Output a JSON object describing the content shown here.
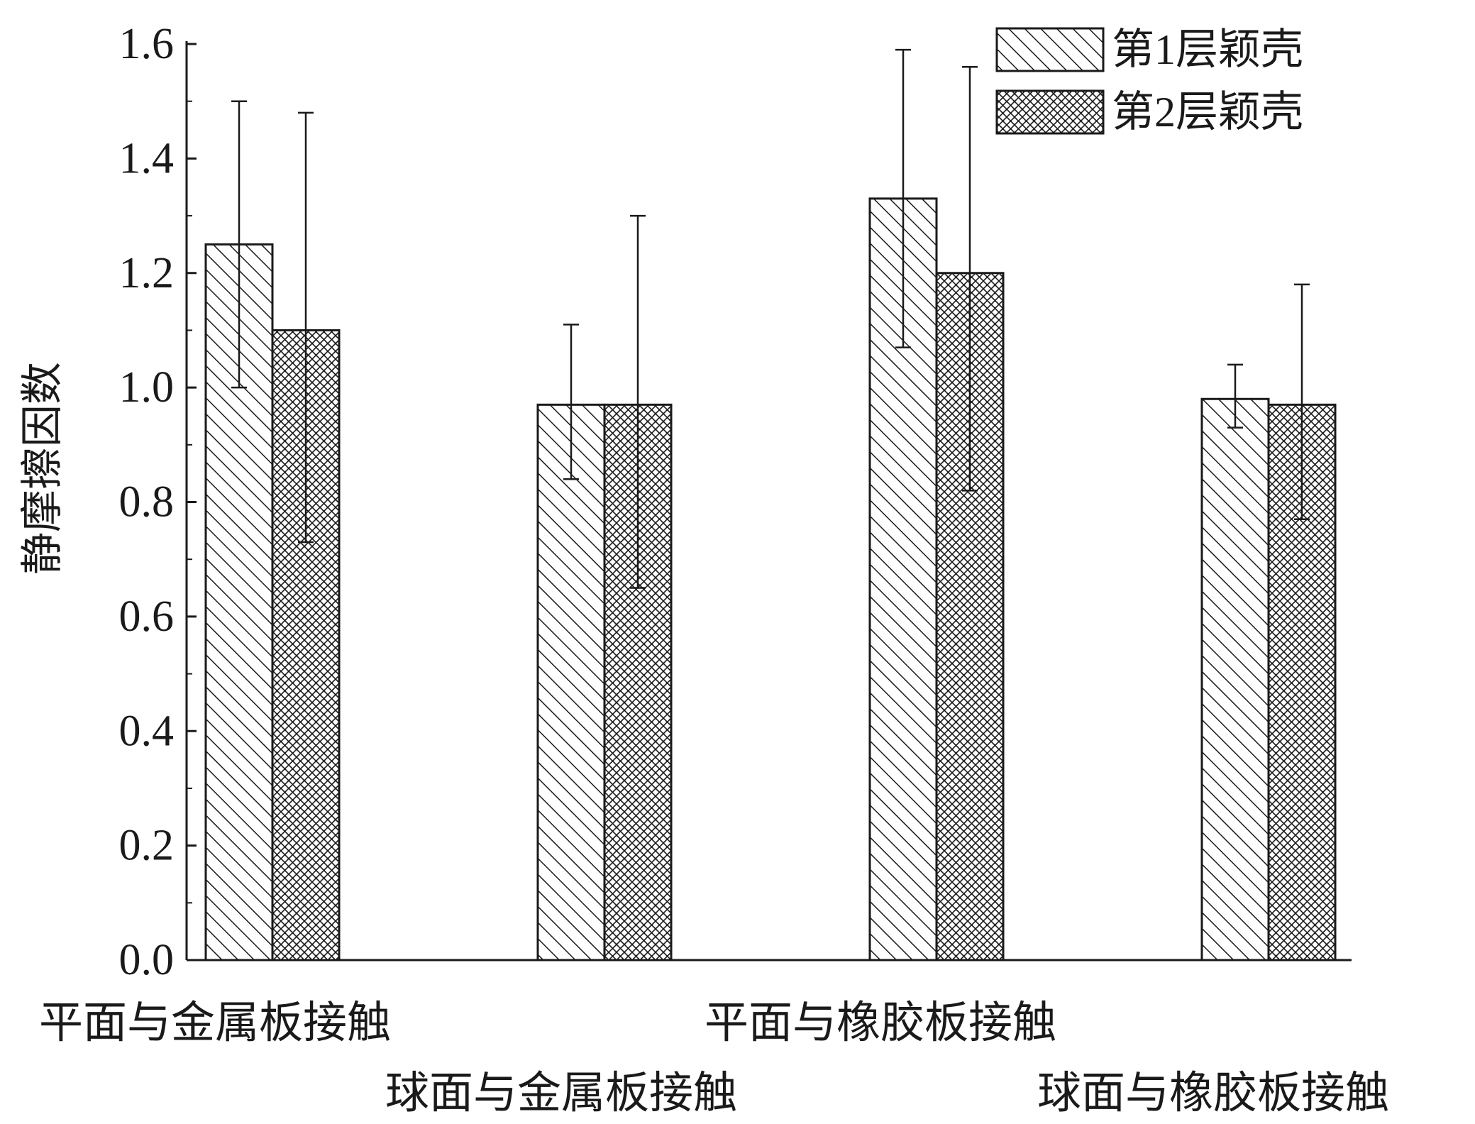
{
  "chart_data": {
    "type": "bar",
    "title": "",
    "xlabel": "",
    "ylabel": "静摩擦因数",
    "ylim": [
      0,
      1.6
    ],
    "yticks": [
      "0.0",
      "0.2",
      "0.4",
      "0.6",
      "0.8",
      "1.0",
      "1.2",
      "1.4",
      "1.6"
    ],
    "categories": [
      "平面与金属板接触",
      "球面与金属板接触",
      "平面与橡胶板接触",
      "球面与橡胶板接触"
    ],
    "series": [
      {
        "name": "第1层颖壳",
        "pattern": "diagonal-hatch",
        "values": [
          1.25,
          0.97,
          1.33,
          0.98
        ],
        "error_high": [
          1.5,
          1.11,
          1.59,
          1.04
        ],
        "error_low": [
          1.0,
          0.84,
          1.07,
          0.93
        ]
      },
      {
        "name": "第2层颖壳",
        "pattern": "cross-hatch",
        "values": [
          1.1,
          0.97,
          1.2,
          0.97
        ],
        "error_high": [
          1.48,
          1.3,
          1.56,
          1.18
        ],
        "error_low": [
          0.73,
          0.65,
          0.82,
          0.77
        ]
      }
    ],
    "grid": false,
    "legend": "top-right",
    "colors": {
      "ink": "#1a1a1a",
      "background": "#ffffff"
    }
  }
}
